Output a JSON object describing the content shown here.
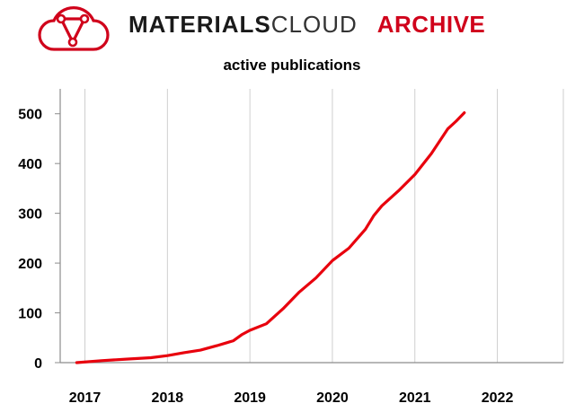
{
  "header": {
    "brand_bold": "MATERIALS",
    "brand_light": "CLOUD",
    "brand_archive": "ARCHIVE",
    "logo_icon": "materials-cloud-logo-icon",
    "accent_color": "#d0021b"
  },
  "chart_data": {
    "type": "line",
    "title": "active publications",
    "xlabel": "",
    "ylabel": "",
    "categories": [
      "2017",
      "2018",
      "2019",
      "2020",
      "2021",
      "2022"
    ],
    "ylim": [
      0,
      550
    ],
    "xlim": [
      2016.7,
      2022.8
    ],
    "yticks": [
      0,
      100,
      200,
      300,
      400,
      500
    ],
    "ytick_labels": [
      "0",
      "100",
      "200",
      "300",
      "400",
      "500"
    ],
    "grid": "vertical",
    "series": [
      {
        "name": "active publications",
        "color": "#e8000d",
        "x": [
          2016.9,
          2017.2,
          2017.5,
          2017.8,
          2018.0,
          2018.2,
          2018.4,
          2018.6,
          2018.8,
          2018.9,
          2019.0,
          2019.2,
          2019.4,
          2019.5,
          2019.6,
          2019.8,
          2020.0,
          2020.2,
          2020.4,
          2020.5,
          2020.6,
          2020.8,
          2021.0,
          2021.2,
          2021.4,
          2021.5,
          2021.6
        ],
        "values": [
          0,
          4,
          7,
          10,
          14,
          20,
          25,
          34,
          44,
          56,
          65,
          78,
          108,
          125,
          142,
          170,
          205,
          230,
          268,
          295,
          315,
          345,
          378,
          420,
          470,
          485,
          502
        ]
      }
    ]
  }
}
